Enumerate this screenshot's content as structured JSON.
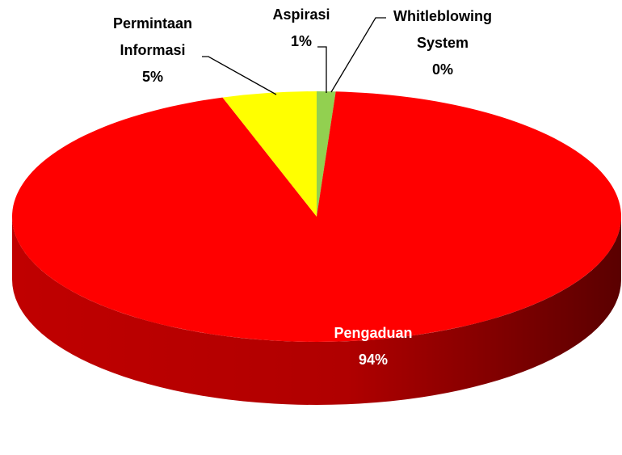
{
  "chart_data": {
    "type": "pie3d",
    "categories": [
      "Whitleblowing System",
      "Aspirasi",
      "Pengaduan",
      "Permintaan Informasi"
    ],
    "values": [
      0,
      1,
      94,
      5
    ],
    "value_labels": [
      "0%",
      "1%",
      "94%",
      "5%"
    ],
    "colors": [
      "#7030a0",
      "#92d050",
      "#ff0000",
      "#ffff00"
    ]
  }
}
